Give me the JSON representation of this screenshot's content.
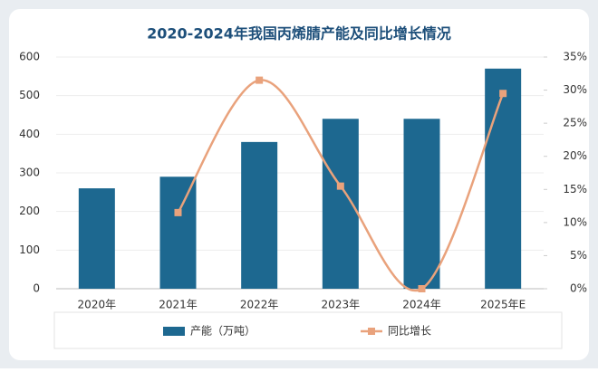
{
  "chart_data": {
    "type": "bar-line",
    "title": "2020-2024年我国丙烯腈产能及同比增长情况",
    "categories": [
      "2020年",
      "2021年",
      "2022年",
      "2023年",
      "2024年",
      "2025年E"
    ],
    "series": [
      {
        "name": "产能（万吨）",
        "type": "bar",
        "color": "#1d6890",
        "values": [
          260,
          290,
          380,
          440,
          440,
          570
        ]
      },
      {
        "name": "同比增长",
        "type": "line",
        "axis": "y2",
        "color": "#e9a27c",
        "values": [
          null,
          11.5,
          31.5,
          15.5,
          0,
          29.5
        ]
      }
    ],
    "ylim": [
      0,
      600
    ],
    "yticks": [
      0,
      100,
      200,
      300,
      400,
      500,
      600
    ],
    "y2lim": [
      0,
      35
    ],
    "y2ticks": [
      {
        "value": 0,
        "label": "0%"
      },
      {
        "value": 5,
        "label": "5%"
      },
      {
        "value": 10,
        "label": "10%"
      },
      {
        "value": 15,
        "label": "15%"
      },
      {
        "value": 20,
        "label": "20%"
      },
      {
        "value": 25,
        "label": "25%"
      },
      {
        "value": 30,
        "label": "30%"
      },
      {
        "value": 35,
        "label": "35%"
      }
    ],
    "grid": true,
    "legend": "bottom"
  }
}
